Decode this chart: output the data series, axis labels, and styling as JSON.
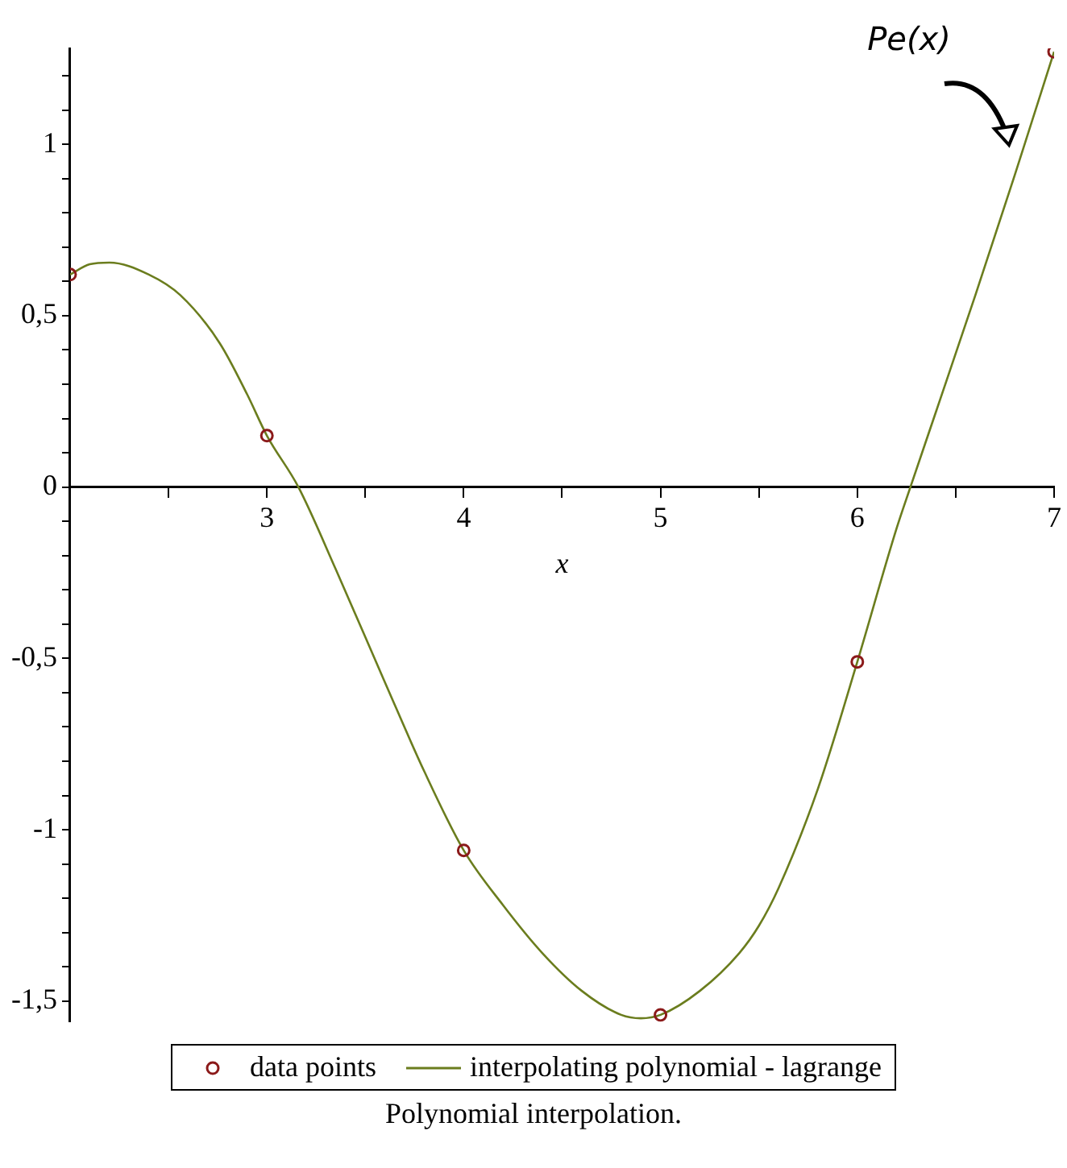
{
  "chart_data": {
    "type": "line",
    "title": "Polynomial interpolation.",
    "xlabel": "x",
    "xlim": [
      2,
      7
    ],
    "ylim": [
      -1.56,
      1.28
    ],
    "xticks": [
      {
        "value": 2.5,
        "label": null
      },
      3,
      {
        "value": 3.5,
        "label": null
      },
      4,
      {
        "value": 4.5,
        "label": null
      },
      5,
      {
        "value": 5.5,
        "label": null
      },
      6,
      {
        "value": 6.5,
        "label": null
      },
      7
    ],
    "yticks": [
      {
        "value": -1.5,
        "label": "-1,5"
      },
      {
        "value": -1.4,
        "label": null
      },
      {
        "value": -1.3,
        "label": null
      },
      {
        "value": -1.2,
        "label": null
      },
      {
        "value": -1.1,
        "label": null
      },
      {
        "value": -1,
        "label": "-1"
      },
      {
        "value": -0.9,
        "label": null
      },
      {
        "value": -0.8,
        "label": null
      },
      {
        "value": -0.7,
        "label": null
      },
      {
        "value": -0.6,
        "label": null
      },
      {
        "value": -0.5,
        "label": "-0,5"
      },
      {
        "value": -0.4,
        "label": null
      },
      {
        "value": -0.3,
        "label": null
      },
      {
        "value": -0.2,
        "label": null
      },
      {
        "value": -0.1,
        "label": null
      },
      0,
      {
        "value": 0.1,
        "label": null
      },
      {
        "value": 0.2,
        "label": null
      },
      {
        "value": 0.3,
        "label": null
      },
      {
        "value": 0.4,
        "label": null
      },
      {
        "value": 0.5,
        "label": "0,5"
      },
      {
        "value": 0.6,
        "label": null
      },
      {
        "value": 0.7,
        "label": null
      },
      {
        "value": 0.8,
        "label": null
      },
      {
        "value": 0.9,
        "label": null
      },
      {
        "value": 1,
        "label": "1"
      },
      {
        "value": 1.1,
        "label": null
      },
      {
        "value": 1.2,
        "label": null
      }
    ],
    "grid": false,
    "legend": "bottom",
    "annotations": [
      "Pe(x)"
    ],
    "series": [
      {
        "name": "data points",
        "type": "scatter",
        "color": "#8b1a1a",
        "marker": "circle",
        "x": [
          2,
          3,
          4,
          5,
          6,
          7
        ],
        "values": [
          0.62,
          0.15,
          -1.06,
          -1.54,
          -0.51,
          1.27
        ]
      },
      {
        "name": "interpolating polynomial - lagrange",
        "type": "line",
        "color": "#6b7d1e",
        "marker": "none",
        "line_style": "solid",
        "x": [
          2,
          2.1,
          2.2,
          2.4,
          2.56,
          2.76,
          2.9,
          3,
          3.16,
          3.35,
          3.6,
          3.8,
          4,
          4.2,
          4.4,
          4.6,
          4.8,
          4.9,
          5,
          5.2,
          5.4,
          5.5,
          5.6,
          5.8,
          6,
          6.2,
          6.27,
          6.4,
          6.6,
          6.8,
          7
        ],
        "values": [
          0.62,
          0.65,
          0.655,
          0.62,
          0.56,
          0.42,
          0.27,
          0.15,
          0,
          -0.24,
          -0.57,
          -0.83,
          -1.06,
          -1.22,
          -1.36,
          -1.47,
          -1.54,
          -1.55,
          -1.54,
          -1.47,
          -1.36,
          -1.28,
          -1.17,
          -0.88,
          -0.51,
          -0.12,
          0,
          0.22,
          0.56,
          0.91,
          1.27
        ]
      }
    ]
  }
}
